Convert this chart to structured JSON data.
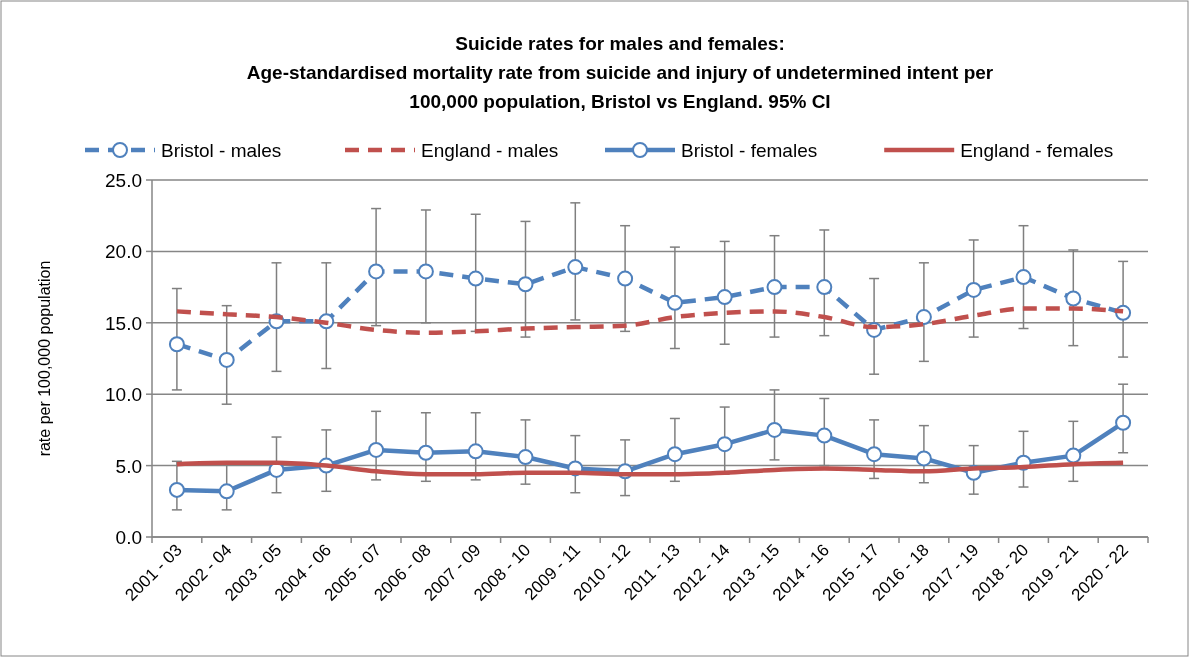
{
  "chart_data": {
    "type": "line",
    "title": "Suicide rates for males and females:",
    "subtitle": "Age-standardised mortality rate from suicide and injury of undetermined intent per 100,000 population, Bristol vs England. 95% CI",
    "ylabel": "rate per 100,000 population",
    "categories": [
      "2001 - 03",
      "2002 - 04",
      "2003 - 05",
      "2004 - 06",
      "2005 - 07",
      "2006 - 08",
      "2007 - 09",
      "2008 - 10",
      "2009 - 11",
      "2010 - 12",
      "2011 - 13",
      "2012 - 14",
      "2013 - 15",
      "2014 - 16",
      "2015 - 17",
      "2016 - 18",
      "2017 - 19",
      "2018 - 20",
      "2019 - 21",
      "2020 - 22"
    ],
    "ylim": [
      0,
      25
    ],
    "yticks": [
      {
        "value": 0,
        "label": "0.0"
      },
      {
        "value": 5,
        "label": "5.0"
      },
      {
        "value": 10,
        "label": "10.0"
      },
      {
        "value": 15,
        "label": "15.0"
      },
      {
        "value": 20,
        "label": "20.0"
      },
      {
        "value": 25,
        "label": "25.0"
      }
    ],
    "grid": "y",
    "legend": "top",
    "series": [
      {
        "name": "Bristol - males",
        "color": "#4f81bd",
        "marker": "circle",
        "line_style": "dashed",
        "values": [
          13.5,
          12.4,
          15.1,
          15.1,
          18.6,
          18.6,
          18.1,
          17.7,
          18.9,
          18.1,
          16.4,
          16.8,
          17.5,
          17.5,
          14.5,
          15.4,
          17.3,
          18.2,
          16.7,
          15.7
        ],
        "errors": [
          [
            10.3,
            17.4
          ],
          [
            9.3,
            16.2
          ],
          [
            11.6,
            19.2
          ],
          [
            11.8,
            19.2
          ],
          [
            14.8,
            23.0
          ],
          [
            15.0,
            22.9
          ],
          [
            14.4,
            22.6
          ],
          [
            14.0,
            22.1
          ],
          [
            15.2,
            23.4
          ],
          [
            14.4,
            21.8
          ],
          [
            13.2,
            20.3
          ],
          [
            13.5,
            20.7
          ],
          [
            14.0,
            21.1
          ],
          [
            14.1,
            21.5
          ],
          [
            11.4,
            18.1
          ],
          [
            12.3,
            19.2
          ],
          [
            14.0,
            20.8
          ],
          [
            14.6,
            21.8
          ],
          [
            13.4,
            20.1
          ],
          [
            12.6,
            19.3
          ]
        ]
      },
      {
        "name": "England - males",
        "color": "#c0504d",
        "marker": "none",
        "line_style": "dashed",
        "values": [
          15.8,
          15.6,
          15.4,
          15.0,
          14.5,
          14.3,
          14.4,
          14.6,
          14.7,
          14.8,
          15.4,
          15.7,
          15.8,
          15.4,
          14.7,
          14.9,
          15.5,
          16.0,
          16.0,
          15.8
        ]
      },
      {
        "name": "Bristol - females",
        "color": "#4f81bd",
        "marker": "circle",
        "line_style": "solid",
        "values": [
          3.3,
          3.2,
          4.7,
          5.0,
          6.1,
          5.9,
          6.0,
          5.6,
          4.8,
          4.6,
          5.8,
          6.5,
          7.5,
          7.1,
          5.8,
          5.5,
          4.5,
          5.2,
          5.7,
          8.0
        ],
        "errors": [
          [
            1.9,
            5.3
          ],
          [
            1.9,
            5.1
          ],
          [
            3.1,
            7.0
          ],
          [
            3.2,
            7.5
          ],
          [
            4.0,
            8.8
          ],
          [
            3.9,
            8.7
          ],
          [
            4.0,
            8.7
          ],
          [
            3.7,
            8.2
          ],
          [
            3.1,
            7.1
          ],
          [
            2.9,
            6.8
          ],
          [
            3.9,
            8.3
          ],
          [
            4.4,
            9.1
          ],
          [
            5.4,
            10.3
          ],
          [
            5.0,
            9.7
          ],
          [
            4.1,
            8.2
          ],
          [
            3.8,
            7.8
          ],
          [
            3.0,
            6.4
          ],
          [
            3.5,
            7.4
          ],
          [
            3.9,
            8.1
          ],
          [
            5.9,
            10.7
          ]
        ]
      },
      {
        "name": "England - females",
        "color": "#c0504d",
        "marker": "none",
        "line_style": "solid",
        "values": [
          5.1,
          5.2,
          5.2,
          5.0,
          4.6,
          4.4,
          4.4,
          4.5,
          4.5,
          4.4,
          4.4,
          4.5,
          4.7,
          4.8,
          4.7,
          4.6,
          4.8,
          4.9,
          5.1,
          5.2
        ]
      }
    ]
  }
}
